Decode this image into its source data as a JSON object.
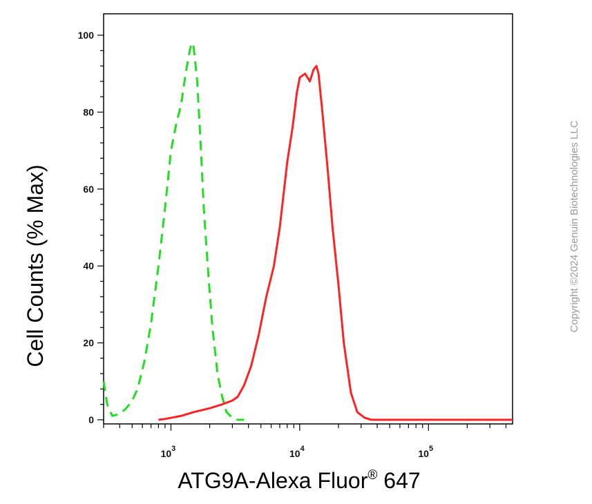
{
  "chart_data": {
    "type": "line",
    "xlabel_main": "ATG9A-Alexa Fluor",
    "xlabel_sup": "®",
    "xlabel_tail": " 647",
    "ylabel": "Cell Counts (% Max)",
    "x_scale": "log",
    "xlim": [
      300,
      450000
    ],
    "ylim": [
      0,
      105
    ],
    "y_ticks": [
      "0",
      "20",
      "40",
      "60",
      "80",
      "100"
    ],
    "y_tick_values": [
      0,
      20,
      40,
      60,
      80,
      100
    ],
    "x_major_ticks": [
      {
        "value": 1000,
        "base": "10",
        "exp": "3"
      },
      {
        "value": 10000,
        "base": "10",
        "exp": "4"
      },
      {
        "value": 100000,
        "base": "10",
        "exp": "5"
      }
    ],
    "grid": false,
    "legend": "none",
    "series": [
      {
        "style": "dashed",
        "color": "#22dd22",
        "x": [
          300,
          320,
          350,
          400,
          450,
          500,
          550,
          620,
          700,
          800,
          900,
          1000,
          1100,
          1200,
          1300,
          1400,
          1450,
          1500,
          1600,
          1700,
          1800,
          1950,
          2100,
          2300,
          2500,
          2700,
          3000,
          3300,
          3700
        ],
        "y": [
          10,
          4,
          1,
          1.5,
          3,
          5,
          8,
          15,
          25,
          40,
          55,
          70,
          77,
          82,
          90,
          96,
          98,
          97,
          88,
          72,
          55,
          38,
          24,
          12,
          6,
          2,
          0.5,
          0,
          0
        ]
      },
      {
        "style": "solid",
        "color": "#ff2222",
        "x": [
          800,
          900,
          1000,
          1200,
          1500,
          2000,
          2500,
          3000,
          3300,
          3700,
          4200,
          4800,
          5500,
          6300,
          7000,
          8000,
          8800,
          9500,
          10000,
          11000,
          12000,
          12800,
          13500,
          14000,
          15000,
          16500,
          18000,
          20000,
          22000,
          25000,
          28000,
          32000,
          36000,
          40000,
          60000,
          100000,
          200000,
          450000
        ],
        "y": [
          0,
          0.2,
          0.5,
          1,
          2,
          3,
          4,
          5,
          6,
          9,
          14,
          22,
          32,
          40,
          50,
          67,
          76,
          85,
          89,
          90,
          88,
          91,
          92,
          90,
          80,
          65,
          50,
          35,
          20,
          7,
          2,
          0.5,
          0,
          0,
          0,
          0,
          0,
          0
        ]
      }
    ]
  },
  "watermark": "Copyright ©2024 Genuin Biotechnologies LLC"
}
